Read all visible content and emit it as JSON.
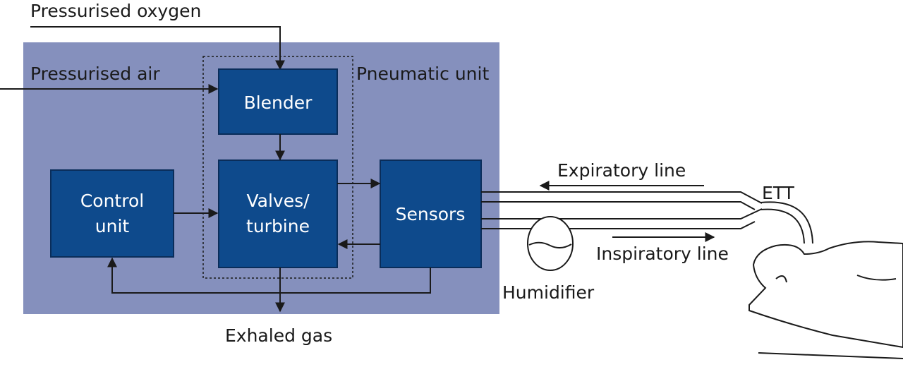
{
  "labels": {
    "pressurised_oxygen": "Pressurised oxygen",
    "pressurised_air": "Pressurised air",
    "pneumatic_unit": "Pneumatic unit",
    "blender": "Blender",
    "valves_line1": "Valves/",
    "valves_line2": "turbine",
    "control_line1": "Control",
    "control_line2": "unit",
    "sensors": "Sensors",
    "expiratory_line": "Expiratory line",
    "inspiratory_line": "Inspiratory line",
    "ett": "ETT",
    "humidifier": "Humidifier",
    "exhaled_gas": "Exhaled gas"
  },
  "colors": {
    "background_panel": "#8590bd",
    "block": "#0e4a8c",
    "line": "#1a1a1a"
  }
}
